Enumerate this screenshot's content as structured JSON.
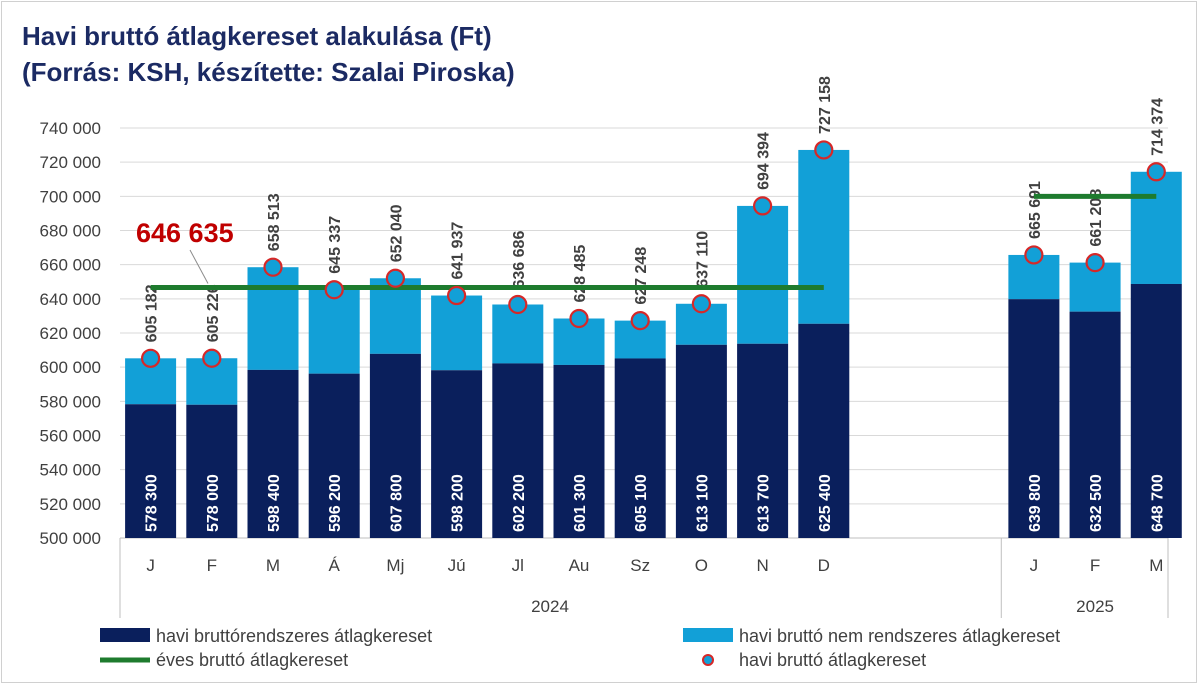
{
  "title_line1": "Havi bruttó átlagkereset alakulása (Ft)",
  "title_line2": "(Forrás: KSH, készítette: Szalai Piroska)",
  "colors": {
    "base": "#0a1f5c",
    "extra": "#12a0d7",
    "annual": "#1e7b2e",
    "marker_edge": "#d62828",
    "marker_fill": "#12a0d7",
    "annual_label": "#c00000",
    "title": "#1b2a63"
  },
  "chart_data": {
    "type": "bar",
    "stacked": true,
    "title": "Havi bruttó átlagkereset alakulása (Ft)",
    "subtitle": "(Forrás: KSH, készítette: Szalai Piroska)",
    "ylim": [
      500000,
      740000
    ],
    "yticks": [
      500000,
      520000,
      540000,
      560000,
      580000,
      600000,
      620000,
      640000,
      660000,
      680000,
      700000,
      720000,
      740000
    ],
    "ytick_labels": [
      "500 000",
      "520 000",
      "540 000",
      "560 000",
      "580 000",
      "600 000",
      "620 000",
      "640 000",
      "660 000",
      "680 000",
      "700 000",
      "720 000",
      "740 000"
    ],
    "grid": true,
    "legend_position": "bottom",
    "groups": [
      {
        "year": "2024",
        "categories": [
          "J",
          "F",
          "M",
          "Á",
          "Mj",
          "Jú",
          "Jl",
          "Au",
          "Sz",
          "O",
          "N",
          "D"
        ],
        "base": [
          578300,
          578000,
          598400,
          596200,
          607800,
          598200,
          602200,
          601300,
          605100,
          613100,
          613700,
          625400
        ],
        "base_labels": [
          "578 300",
          "578 000",
          "598 400",
          "596 200",
          "607 800",
          "598 200",
          "602 200",
          "601 300",
          "605 100",
          "613 100",
          "613 700",
          "625 400"
        ],
        "total": [
          605182,
          605226,
          658513,
          645337,
          652040,
          641937,
          636686,
          628485,
          627248,
          637110,
          694394,
          727158
        ],
        "total_labels": [
          "605 182",
          "605 226",
          "658 513",
          "645 337",
          "652 040",
          "641 937",
          "636 686",
          "628 485",
          "627 248",
          "637 110",
          "694 394",
          "727 158"
        ],
        "annual": 646635,
        "annual_label": "646 635"
      },
      {
        "year": "2025",
        "categories": [
          "J",
          "F",
          "M"
        ],
        "base": [
          639800,
          632500,
          648700
        ],
        "base_labels": [
          "639 800",
          "632 500",
          "648 700"
        ],
        "total": [
          665691,
          661208,
          714374
        ],
        "total_labels": [
          "665 691",
          "661 208",
          "714 374"
        ],
        "annual": 700000,
        "annual_label": ""
      }
    ],
    "series": [
      {
        "name": "havi bruttórendszeres átlagkereset",
        "kind": "bar",
        "color": "#0a1f5c"
      },
      {
        "name": "havi bruttó nem rendszeres átlagkereset",
        "kind": "bar",
        "color": "#12a0d7"
      },
      {
        "name": "éves bruttó átlagkereset",
        "kind": "line",
        "color": "#1e7b2e"
      },
      {
        "name": "havi bruttó átlagkereset",
        "kind": "marker",
        "color": "#d62828"
      }
    ]
  }
}
